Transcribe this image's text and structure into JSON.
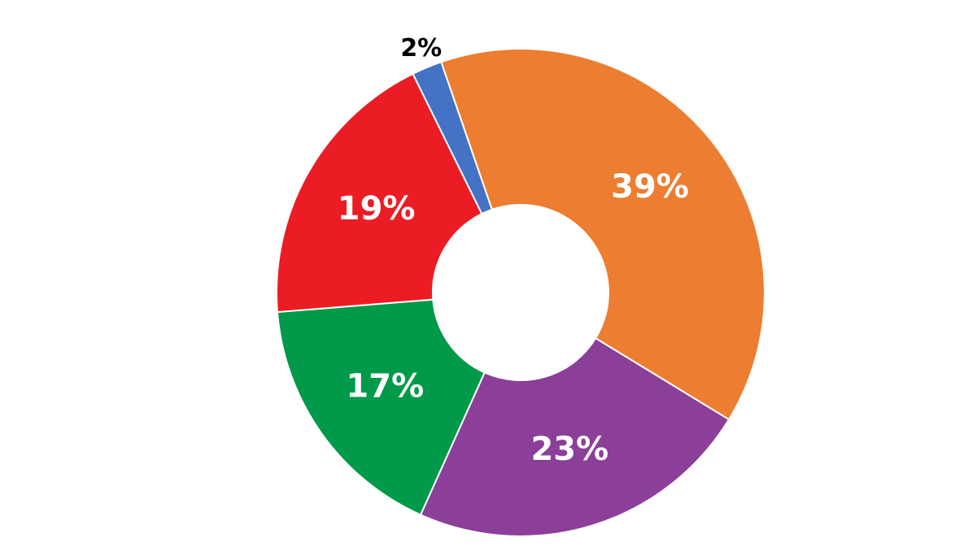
{
  "chart_data": {
    "type": "pie",
    "variant": "donut",
    "start_angle_deg": -19,
    "direction": "clockwise",
    "slices": [
      {
        "value": 39,
        "label": "39%",
        "color": "#ED7D31",
        "label_color": "#FFFFFF",
        "label_position": "inside"
      },
      {
        "value": 23,
        "label": "23%",
        "color": "#8B3F98",
        "label_color": "#FFFFFF",
        "label_position": "inside"
      },
      {
        "value": 17,
        "label": "17%",
        "color": "#009A4A",
        "label_color": "#FFFFFF",
        "label_position": "inside"
      },
      {
        "value": 19,
        "label": "19%",
        "color": "#EC1C24",
        "label_color": "#FFFFFF",
        "label_position": "inside"
      },
      {
        "value": 2,
        "label": "2%",
        "color": "#4472C4",
        "label_color": "#000000",
        "label_position": "outside"
      }
    ],
    "legend": "none",
    "title": ""
  }
}
